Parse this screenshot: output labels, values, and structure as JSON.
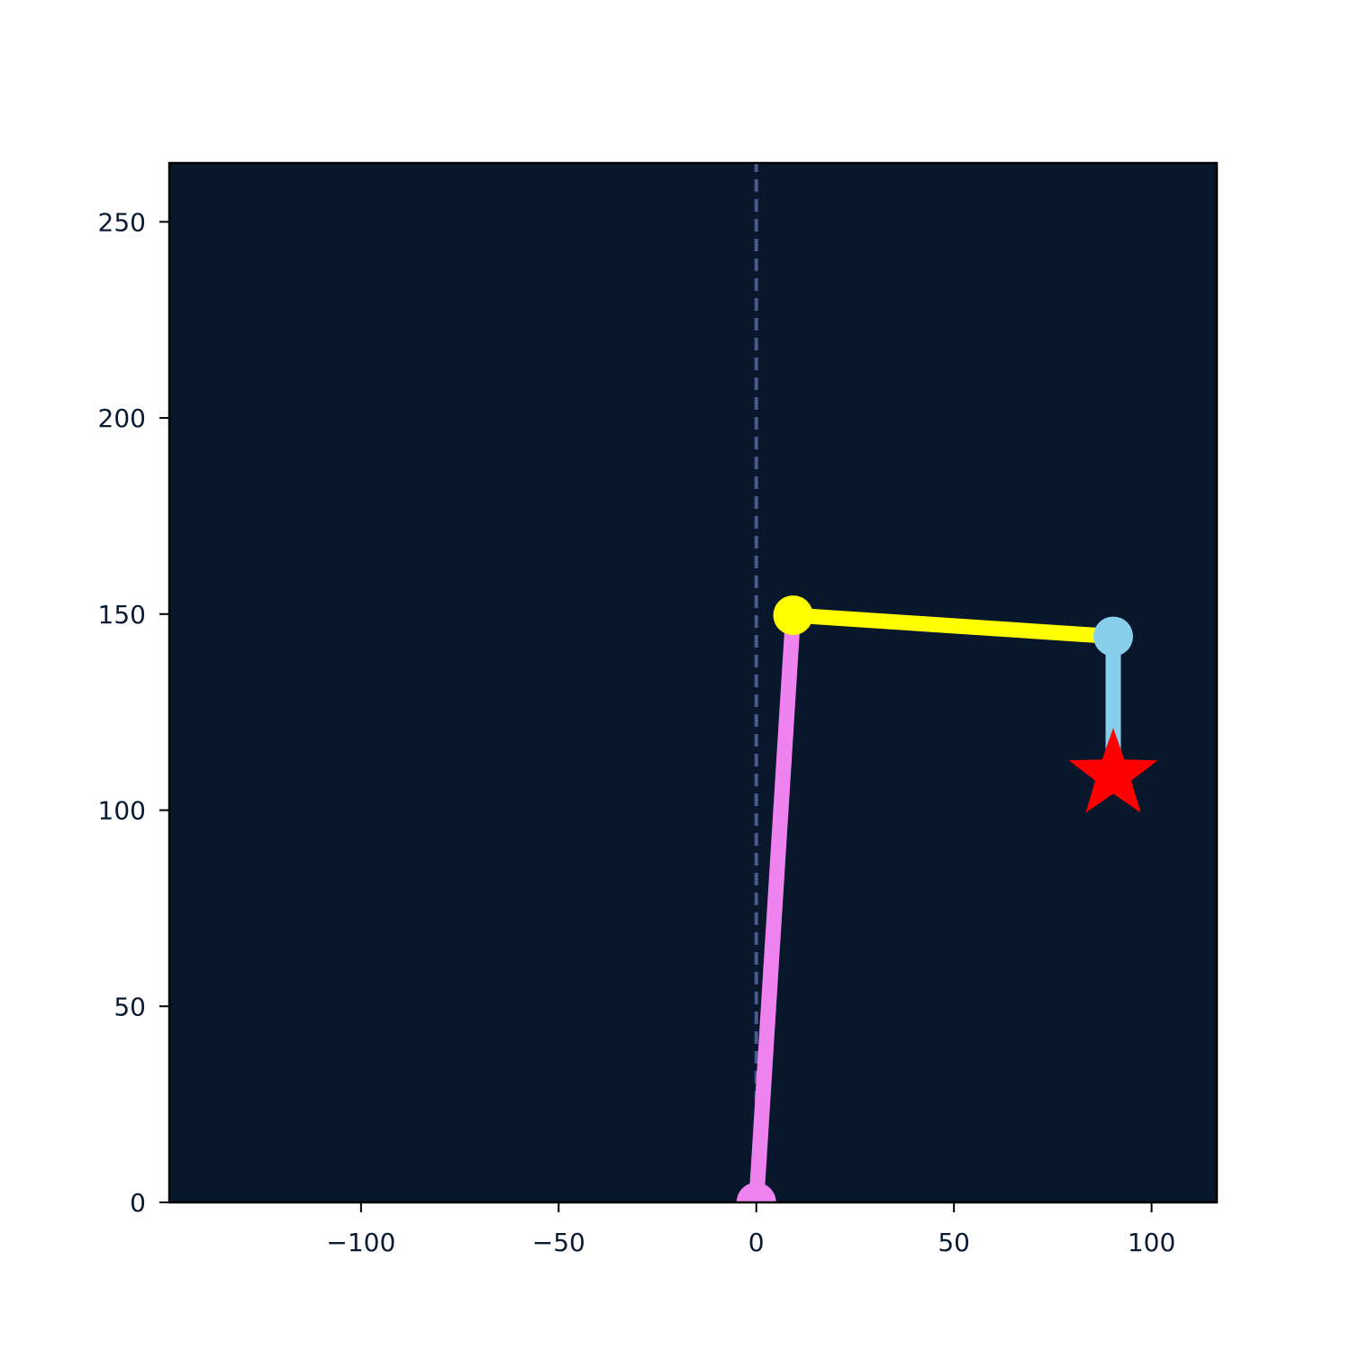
{
  "chart_data": {
    "type": "line",
    "title": "",
    "xlabel": "",
    "ylabel": "",
    "xlim": [
      -148.5,
      116.5
    ],
    "ylim": [
      0,
      265
    ],
    "x_ticks": [
      -100,
      -50,
      0,
      50,
      100
    ],
    "y_ticks": [
      0,
      50,
      100,
      150,
      200,
      250
    ],
    "x_tick_labels": [
      "−100",
      "−50",
      "0",
      "50",
      "100"
    ],
    "y_tick_labels": [
      "0",
      "50",
      "100",
      "150",
      "200",
      "250"
    ],
    "grid": false,
    "legend": "none",
    "background_color": "#08172b",
    "reference_line": {
      "orientation": "vertical",
      "x": 0,
      "style": "dashed",
      "color": "#4a5a8a"
    },
    "segments": [
      {
        "from": [
          0,
          0
        ],
        "to": [
          9.3,
          149.7
        ],
        "color": "#ee82ee"
      },
      {
        "from": [
          9.3,
          149.7
        ],
        "to": [
          90.3,
          144.3
        ],
        "color": "#ffff00"
      },
      {
        "from": [
          90.3,
          144.3
        ],
        "to": [
          90.3,
          110.0
        ],
        "color": "#87ceeb"
      }
    ],
    "joints": [
      {
        "x": 0,
        "y": 0,
        "color": "#ee82ee"
      },
      {
        "x": 9.3,
        "y": 149.7,
        "color": "#ffff00"
      },
      {
        "x": 90.3,
        "y": 144.3,
        "color": "#87ceeb"
      }
    ],
    "target": {
      "x": 90.3,
      "y": 109.0,
      "marker": "star",
      "color": "#ff0000"
    }
  }
}
